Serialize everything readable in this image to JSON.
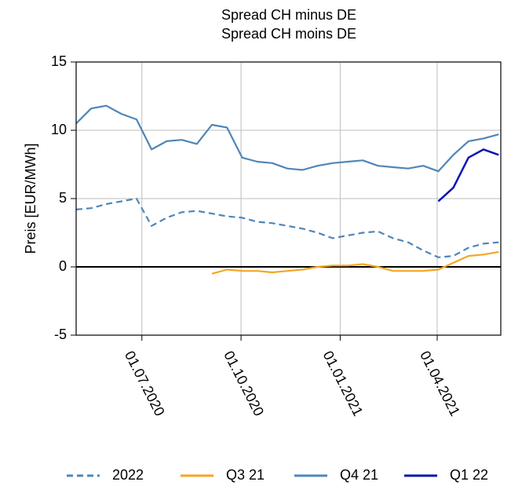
{
  "chart_data": {
    "type": "line",
    "title": "Spread CH minus DE",
    "subtitle": "Spread CH moins DE",
    "y_label": "Preis [EUR/MWh]",
    "x": [
      "2020-05-01",
      "2020-05-15",
      "2020-05-29",
      "2020-06-12",
      "2020-06-26",
      "2020-07-10",
      "2020-07-24",
      "2020-08-07",
      "2020-08-21",
      "2020-09-04",
      "2020-09-18",
      "2020-10-02",
      "2020-10-16",
      "2020-10-30",
      "2020-11-13",
      "2020-11-27",
      "2020-12-11",
      "2020-12-25",
      "2021-01-08",
      "2021-01-22",
      "2021-02-05",
      "2021-02-19",
      "2021-03-05",
      "2021-03-19",
      "2021-04-02",
      "2021-04-16",
      "2021-04-30",
      "2021-05-14",
      "2021-05-28"
    ],
    "series": [
      {
        "name": "2022",
        "color": "#4f86b8",
        "dashed": true,
        "values": [
          4.2,
          4.3,
          4.6,
          4.8,
          5.0,
          3.0,
          3.6,
          4.0,
          4.1,
          3.9,
          3.7,
          3.6,
          3.3,
          3.2,
          3.0,
          2.8,
          2.5,
          2.1,
          2.3,
          2.5,
          2.6,
          2.1,
          1.8,
          1.2,
          0.7,
          0.8,
          1.4,
          1.7,
          1.8
        ]
      },
      {
        "name": "Q3 21",
        "color": "#f5a623",
        "dashed": false,
        "values": [
          null,
          null,
          null,
          null,
          null,
          null,
          null,
          null,
          null,
          -0.5,
          -0.2,
          -0.3,
          -0.3,
          -0.4,
          -0.3,
          -0.2,
          0.0,
          0.1,
          0.1,
          0.2,
          0.0,
          -0.3,
          -0.3,
          -0.3,
          -0.2,
          0.3,
          0.8,
          0.9,
          1.1
        ]
      },
      {
        "name": "Q4 21",
        "color": "#4f86b8",
        "dashed": false,
        "values": [
          10.5,
          11.6,
          11.8,
          11.2,
          10.8,
          8.6,
          9.2,
          9.3,
          9.0,
          10.4,
          10.2,
          8.0,
          7.7,
          7.6,
          7.2,
          7.1,
          7.4,
          7.6,
          7.7,
          7.8,
          7.4,
          7.3,
          7.2,
          7.4,
          7.0,
          8.2,
          9.2,
          9.4,
          9.7
        ]
      },
      {
        "name": "Q1 22",
        "color": "#0a14b4",
        "dashed": false,
        "values": [
          null,
          null,
          null,
          null,
          null,
          null,
          null,
          null,
          null,
          null,
          null,
          null,
          null,
          null,
          null,
          null,
          null,
          null,
          null,
          null,
          null,
          null,
          null,
          null,
          4.8,
          5.8,
          8.0,
          8.6,
          8.2
        ]
      }
    ],
    "xlim": [
      "2020-05-01",
      "2021-05-30"
    ],
    "xticks": [
      {
        "value": "2020-07-01",
        "label": "01.07.2020"
      },
      {
        "value": "2020-10-01",
        "label": "01.10.2020"
      },
      {
        "value": "2021-01-01",
        "label": "01.01.2021"
      },
      {
        "value": "2021-04-01",
        "label": "01.04.2021"
      }
    ],
    "ylim": [
      -5,
      15
    ],
    "yticks": [
      -5,
      0,
      5,
      10,
      15
    ],
    "reference_line": 0,
    "grid": true,
    "legend": "bottom"
  }
}
